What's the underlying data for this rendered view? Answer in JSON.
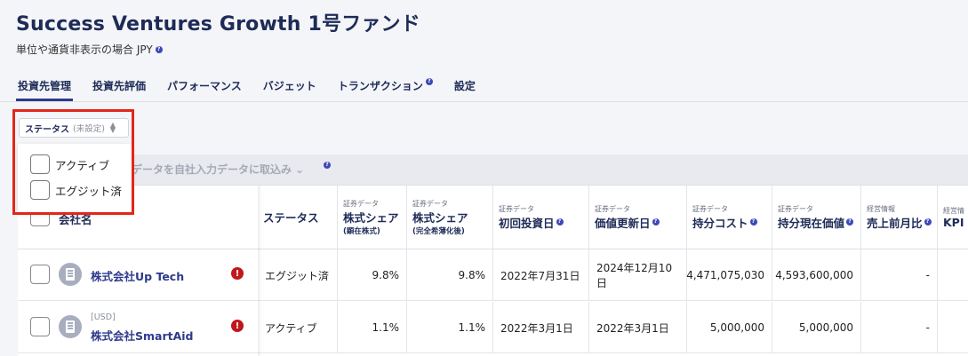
{
  "header": {
    "title": "Success Ventures Growth 1号ファンド",
    "subtitle": "単位や通貨非表示の場合 JPY"
  },
  "help_glyph": "?",
  "tabs": [
    {
      "label": "投資先管理",
      "active": true,
      "help": false
    },
    {
      "label": "投資先評価",
      "active": false,
      "help": false
    },
    {
      "label": "パフォーマンス",
      "active": false,
      "help": false
    },
    {
      "label": "バジェット",
      "active": false,
      "help": false
    },
    {
      "label": "トランザクション",
      "active": false,
      "help": true
    },
    {
      "label": "設定",
      "active": false,
      "help": false
    }
  ],
  "status_filter": {
    "label": "ステータス",
    "value": "(未設定)",
    "options": [
      {
        "label": "アクティブ",
        "checked": false
      },
      {
        "label": "エグジット済",
        "checked": false
      }
    ]
  },
  "import_action": "データを自社入力データに取込み",
  "table": {
    "headers": {
      "company": "会社名",
      "status": "ステータス",
      "share_issued": {
        "cat": "証券データ",
        "main": "株式シェア",
        "note": "(顕在株式)"
      },
      "share_diluted": {
        "cat": "証券データ",
        "main": "株式シェア",
        "note": "(完全希薄化後)"
      },
      "first_invest": {
        "cat": "証券データ",
        "main": "初回投資日"
      },
      "value_update": {
        "cat": "証券データ",
        "main": "価値更新日"
      },
      "holding_cost": {
        "cat": "証券データ",
        "main": "持分コスト"
      },
      "holding_value": {
        "cat": "証券データ",
        "main": "持分現在価値"
      },
      "sales_mom": {
        "cat": "経営情報",
        "main": "売上前月比"
      },
      "kpi": {
        "cat": "経営情",
        "main": "KPI"
      }
    },
    "rows": [
      {
        "currency": "",
        "company": "株式会社Up Tech",
        "warn": "!",
        "status": "エグジット済",
        "share_issued": "9.8%",
        "share_diluted": "9.8%",
        "first_invest": "2022年7月31日",
        "value_update": "2024年12月10日",
        "holding_cost": "4,471,075,030",
        "holding_value": "4,593,600,000",
        "sales_mom": "-"
      },
      {
        "currency": "[USD]",
        "company": "株式会社SmartAid",
        "warn": "!",
        "status": "アクティブ",
        "share_issued": "1.1%",
        "share_diluted": "1.1%",
        "first_invest": "2022年3月1日",
        "value_update": "2022年3月1日",
        "holding_cost": "5,000,000",
        "holding_value": "5,000,000",
        "sales_mom": "-"
      }
    ]
  }
}
